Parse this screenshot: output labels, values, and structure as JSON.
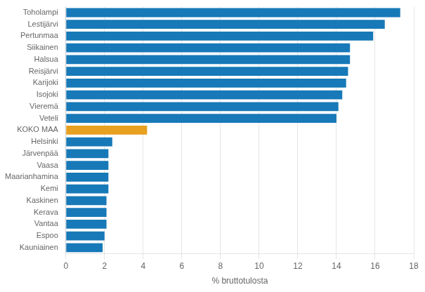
{
  "chart_data": {
    "type": "bar",
    "orientation": "horizontal",
    "categories": [
      "Toholampi",
      "Lestijärvi",
      "Pertunmaa",
      "Siikainen",
      "Halsua",
      "Reisjärvi",
      "Karijoki",
      "Isojoki",
      "Vieremä",
      "Veteli",
      "KOKO MAA",
      "Helsinki",
      "Järvenpää",
      "Vaasa",
      "Maarianhamina",
      "Kemi",
      "Kaskinen",
      "Kerava",
      "Vantaa",
      "Espoo",
      "Kauniainen"
    ],
    "values": [
      17.3,
      16.5,
      15.9,
      14.7,
      14.7,
      14.6,
      14.5,
      14.3,
      14.1,
      14.0,
      4.2,
      2.4,
      2.2,
      2.2,
      2.2,
      2.2,
      2.1,
      2.1,
      2.1,
      2.0,
      1.9
    ],
    "colors": [
      "#1779b8",
      "#1779b8",
      "#1779b8",
      "#1779b8",
      "#1779b8",
      "#1779b8",
      "#1779b8",
      "#1779b8",
      "#1779b8",
      "#1779b8",
      "#e8a020",
      "#1779b8",
      "#1779b8",
      "#1779b8",
      "#1779b8",
      "#1779b8",
      "#1779b8",
      "#1779b8",
      "#1779b8",
      "#1779b8",
      "#1779b8"
    ],
    "xlabel": "% bruttotulosta",
    "xlim": [
      0,
      18
    ],
    "xticks": [
      0,
      2,
      4,
      6,
      8,
      10,
      12,
      14,
      16,
      18
    ],
    "grid": true
  }
}
